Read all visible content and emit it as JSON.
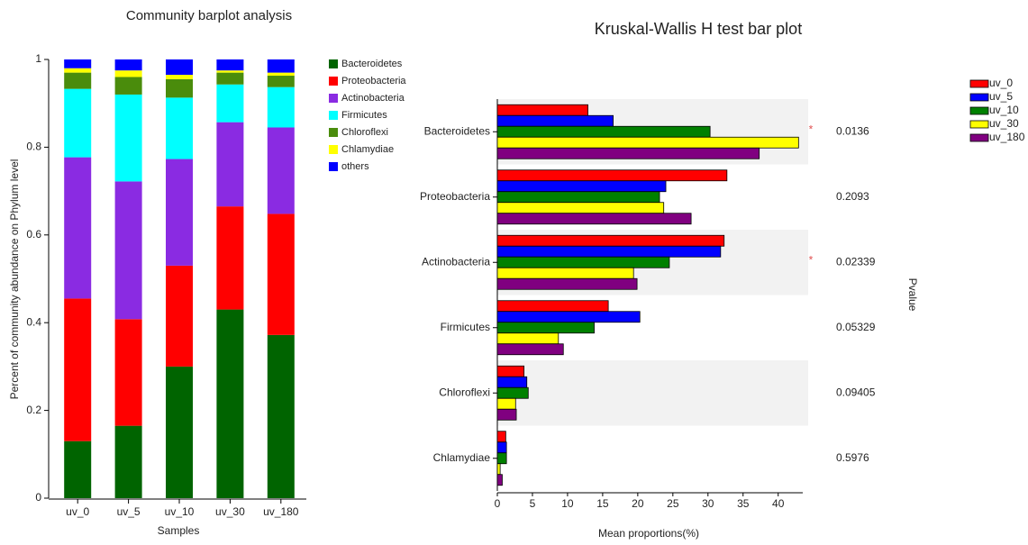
{
  "chart_data": [
    {
      "type": "bar",
      "stacked": true,
      "orientation": "vertical",
      "title": "Community barplot analysis",
      "xlabel": "Samples",
      "ylabel": "Percent of community abundance on Phylum level",
      "categories": [
        "uv_0",
        "uv_5",
        "uv_10",
        "uv_30",
        "uv_180"
      ],
      "ylim": [
        0,
        1
      ],
      "yticks": [
        0,
        0.2,
        0.4,
        0.6,
        0.8,
        1
      ],
      "series": [
        {
          "name": "Bacteroidetes",
          "color": "#006400",
          "values": [
            0.13,
            0.165,
            0.3,
            0.43,
            0.372
          ]
        },
        {
          "name": "Proteobacteria",
          "color": "#ff0000",
          "values": [
            0.325,
            0.243,
            0.23,
            0.235,
            0.276
          ]
        },
        {
          "name": "Actinobacteria",
          "color": "#8a2be2",
          "values": [
            0.322,
            0.314,
            0.243,
            0.192,
            0.197
          ]
        },
        {
          "name": "Firmicutes",
          "color": "#00ffff",
          "values": [
            0.156,
            0.198,
            0.14,
            0.086,
            0.092
          ]
        },
        {
          "name": "Chloroflexi",
          "color": "#4a8c0c",
          "values": [
            0.037,
            0.04,
            0.042,
            0.027,
            0.026
          ]
        },
        {
          "name": "Chlamydiae",
          "color": "#ffff00",
          "values": [
            0.01,
            0.015,
            0.01,
            0.005,
            0.007
          ]
        },
        {
          "name": "others",
          "color": "#0000ff",
          "values": [
            0.02,
            0.025,
            0.035,
            0.025,
            0.03
          ]
        }
      ]
    },
    {
      "type": "bar",
      "stacked": false,
      "orientation": "horizontal",
      "title": "Kruskal-Wallis H test bar plot",
      "xlabel": "Mean proportions(%)",
      "y2label": "Pvalue",
      "categories": [
        "Bacteroidetes",
        "Proteobacteria",
        "Actinobacteria",
        "Firmicutes",
        "Chloroflexi",
        "Chlamydiae"
      ],
      "pvalues": [
        0.0136,
        0.2093,
        0.02339,
        0.05329,
        0.09405,
        0.5976
      ],
      "significance": [
        "*",
        null,
        "*",
        null,
        null,
        null
      ],
      "xlim": [
        0,
        43.5
      ],
      "xticks": [
        0,
        5,
        10,
        15,
        20,
        25,
        30,
        35,
        40
      ],
      "series": [
        {
          "name": "uv_0",
          "color": "#ff0000",
          "values": [
            12.9,
            32.7,
            32.3,
            15.8,
            3.8,
            1.2
          ]
        },
        {
          "name": "uv_5",
          "color": "#0000ff",
          "values": [
            16.5,
            24.0,
            31.8,
            20.3,
            4.2,
            1.3
          ]
        },
        {
          "name": "uv_10",
          "color": "#008000",
          "values": [
            30.3,
            23.1,
            24.5,
            13.8,
            4.4,
            1.3
          ]
        },
        {
          "name": "uv_30",
          "color": "#ffff00",
          "values": [
            42.9,
            23.7,
            19.4,
            8.7,
            2.6,
            0.4
          ]
        },
        {
          "name": "uv_180",
          "color": "#800080",
          "values": [
            37.3,
            27.6,
            19.9,
            9.4,
            2.7,
            0.7
          ]
        }
      ]
    }
  ]
}
